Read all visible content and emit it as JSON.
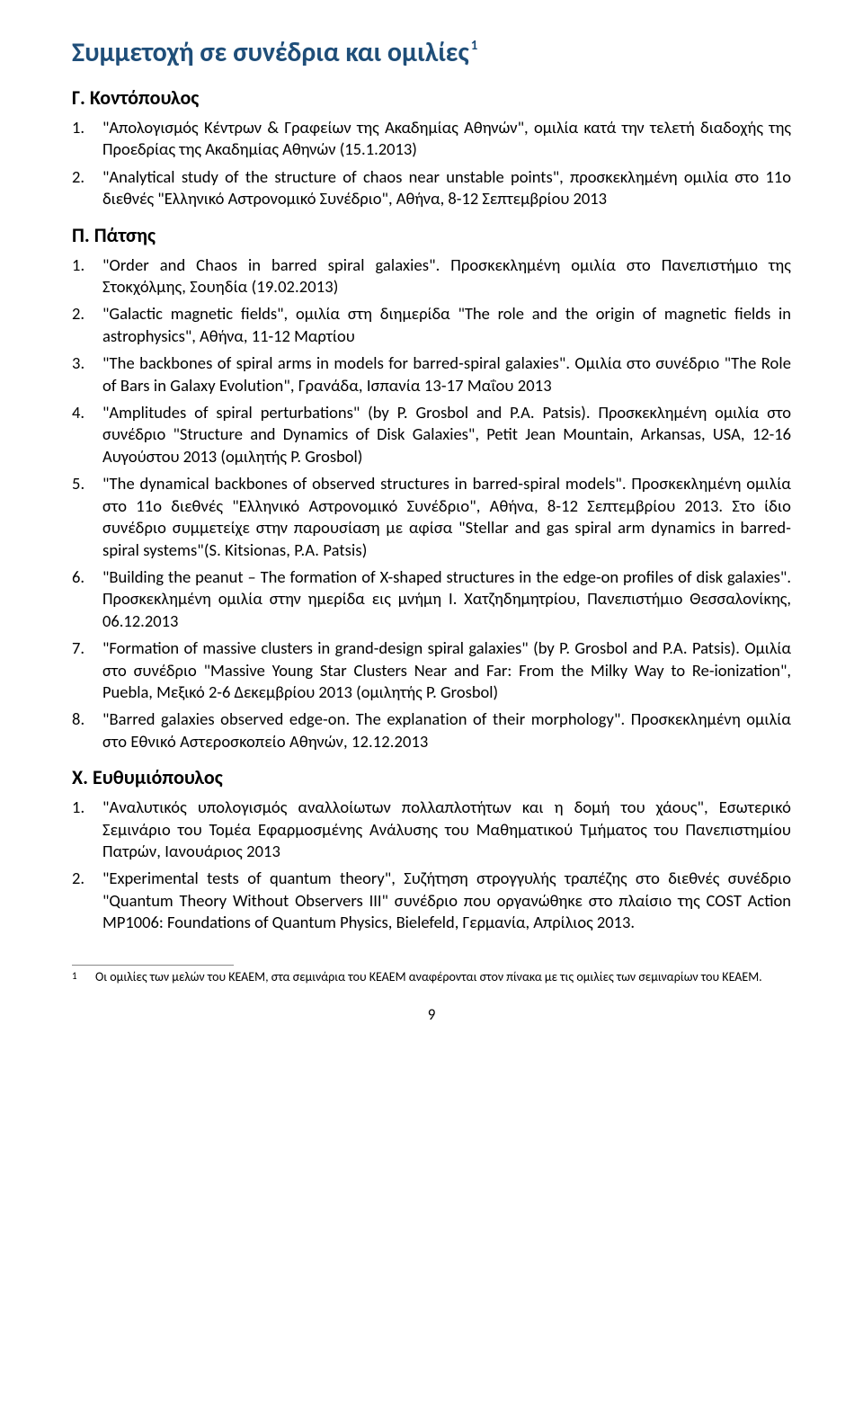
{
  "title": "Συμμετοχή σε συνέδρια και ομιλίες",
  "title_sup": "1",
  "colors": {
    "heading": "#1f4e79",
    "text": "#000000",
    "bg": "#ffffff",
    "footline": "#888888"
  },
  "sections": [
    {
      "author": "Γ. Κοντόπουλος",
      "items": [
        {
          "n": "1.",
          "text": "\"Απολογισμός Κέντρων & Γραφείων της Ακαδημίας Αθηνών\", ομιλία κατά την τελετή διαδοχής της Προεδρίας της Ακαδημίας Αθηνών (15.1.2013)"
        },
        {
          "n": "2.",
          "text": "\"Analytical study of the structure of chaos near unstable points\", προσκεκλημένη ομιλία στο 11ο διεθνές \"Ελληνικό Αστρονομικό Συνέδριο\", Αθήνα, 8-12 Σεπτεμβρίου 2013"
        }
      ]
    },
    {
      "author": "Π. Πάτσης",
      "items": [
        {
          "n": "1.",
          "text": "\"Order and Chaos in barred spiral galaxies\". Προσκεκλημένη ομιλία στο Πανεπιστήμιο της Στοκχόλμης, Σουηδία (19.02.2013)"
        },
        {
          "n": "2.",
          "text": "\"Galactic magnetic fields\", ομιλία στη διημερίδα \"The role and the origin of magnetic fields in astrophysics\", Αθήνα, 11-12 Μαρτίου"
        },
        {
          "n": "3.",
          "text": "\"The backbones of spiral arms in models for barred-spiral galaxies\". Ομιλία στο συνέδριο \"The Role of Bars in Galaxy Evolution\", Γρανάδα, Ισπανία 13-17 Μαΐου 2013"
        },
        {
          "n": "4.",
          "text": "\"Amplitudes of spiral perturbations\" (by P. Grosbol and P.A. Patsis). Προσκεκλημένη ομιλία στο συνέδριο \"Structure and Dynamics of Disk Galaxies\", Petit Jean Mountain, Arkansas, USA, 12-16 Αυγούστου 2013 (ομιλητής P. Grosbol)"
        },
        {
          "n": "5.",
          "text": "\"The dynamical backbones of observed structures in barred-spiral models\". Προσκεκλημένη ομιλία στο 11ο διεθνές \"Ελληνικό Αστρονομικό Συνέδριο\", Αθήνα, 8-12 Σεπτεμβρίου 2013. Στο ίδιο συνέδριο συμμετείχε στην παρουσίαση με αφίσα \"Stellar and gas spiral arm dynamics in barred-spiral systems\"(S. Kitsionas, P.A. Patsis)"
        },
        {
          "n": "6.",
          "text": "\"Building the peanut – The formation of X-shaped structures in the edge-on profiles of disk galaxies\". Προσκεκλημένη ομιλία στην ημερίδα εις μνήμη Ι. Χατζηδημητρίου, Πανεπιστήμιο Θεσσαλονίκης, 06.12.2013"
        },
        {
          "n": "7.",
          "text": "\"Formation of massive clusters in grand-design spiral galaxies\" (by P. Grosbol and P.A. Patsis). Ομιλία στο συνέδριο \"Massive Young Star Clusters Near and Far: From the Milky Way to Re-ionization\", Puebla, Μεξικό 2-6 Δεκεμβρίου 2013 (ομιλητής P. Grosbol)"
        },
        {
          "n": "8.",
          "text": "\"Barred galaxies observed edge-on. The explanation of their morphology\". Προσκεκλημένη ομιλία στο Εθνικό Αστεροσκοπείο Αθηνών, 12.12.2013"
        }
      ]
    },
    {
      "author": "Χ. Ευθυμιόπουλος",
      "items": [
        {
          "n": "1.",
          "text": "\"Αναλυτικός υπολογισμός αναλλοίωτων πολλαπλοτήτων και η δομή του χάους\", Εσωτερικό Σεμινάριο του Τομέα Εφαρμοσμένης Ανάλυσης του Μαθηματικού Τμήματος του Πανεπιστημίου Πατρών, Ιανουάριος 2013"
        },
        {
          "n": "2.",
          "text": "\"Experimental tests of quantum theory\", Συζήτηση στρογγυλής τραπέζης στο διεθνές συνέδριο \"Quantum Theory Without Observers III\" συνέδριο που οργανώθηκε στο πλαίσιο της COST Action MP1006: Foundations of Quantum Physics, Bielefeld, Γερμανία, Απρίλιος 2013."
        }
      ]
    }
  ],
  "footnote": {
    "num": "1",
    "text": "Οι ομιλίες των μελών του ΚΕΑΕΜ, στα σεμινάρια του ΚΕΑΕΜ αναφέρονται στον πίνακα με τις ομιλίες των σεμιναρίων του ΚΕΑΕΜ."
  },
  "page_number": "9"
}
